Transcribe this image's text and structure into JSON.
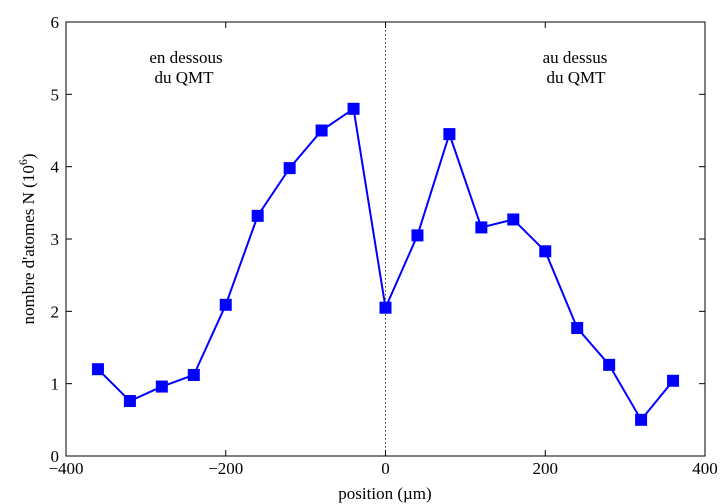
{
  "chart_data": {
    "type": "line",
    "xlabel": "position (µm)",
    "ylabel_prefix": "nombre d'atomes N (10",
    "ylabel_exp": "6",
    "ylabel_suffix": ")",
    "xlim": [
      -400,
      400
    ],
    "ylim": [
      0,
      6
    ],
    "xticks": [
      -400,
      -200,
      0,
      200,
      400
    ],
    "yticks": [
      0,
      1,
      2,
      3,
      4,
      5,
      6
    ],
    "xtick_labels": [
      "−400",
      "−200",
      "0",
      "200",
      "400"
    ],
    "ytick_labels": [
      "0",
      "1",
      "2",
      "3",
      "4",
      "5",
      "6"
    ],
    "reference_line_x": 0,
    "grid": false,
    "color": "#0000ff",
    "marker": "square",
    "annotations": {
      "left_line1": "en dessous",
      "left_line2": "du QMT",
      "right_line1": "au dessus",
      "right_line2": "du QMT"
    },
    "series": [
      {
        "x": [
          -360,
          -320,
          -280,
          -240,
          -200,
          -160,
          -120,
          -80,
          -40,
          0,
          40,
          80,
          120,
          160,
          200,
          240,
          280,
          320,
          360
        ],
        "y": [
          1.2,
          0.76,
          0.96,
          1.12,
          2.09,
          3.32,
          3.98,
          4.5,
          4.8,
          2.05,
          3.05,
          4.45,
          3.16,
          3.27,
          2.83,
          1.77,
          1.26,
          0.5,
          1.04
        ]
      }
    ]
  }
}
